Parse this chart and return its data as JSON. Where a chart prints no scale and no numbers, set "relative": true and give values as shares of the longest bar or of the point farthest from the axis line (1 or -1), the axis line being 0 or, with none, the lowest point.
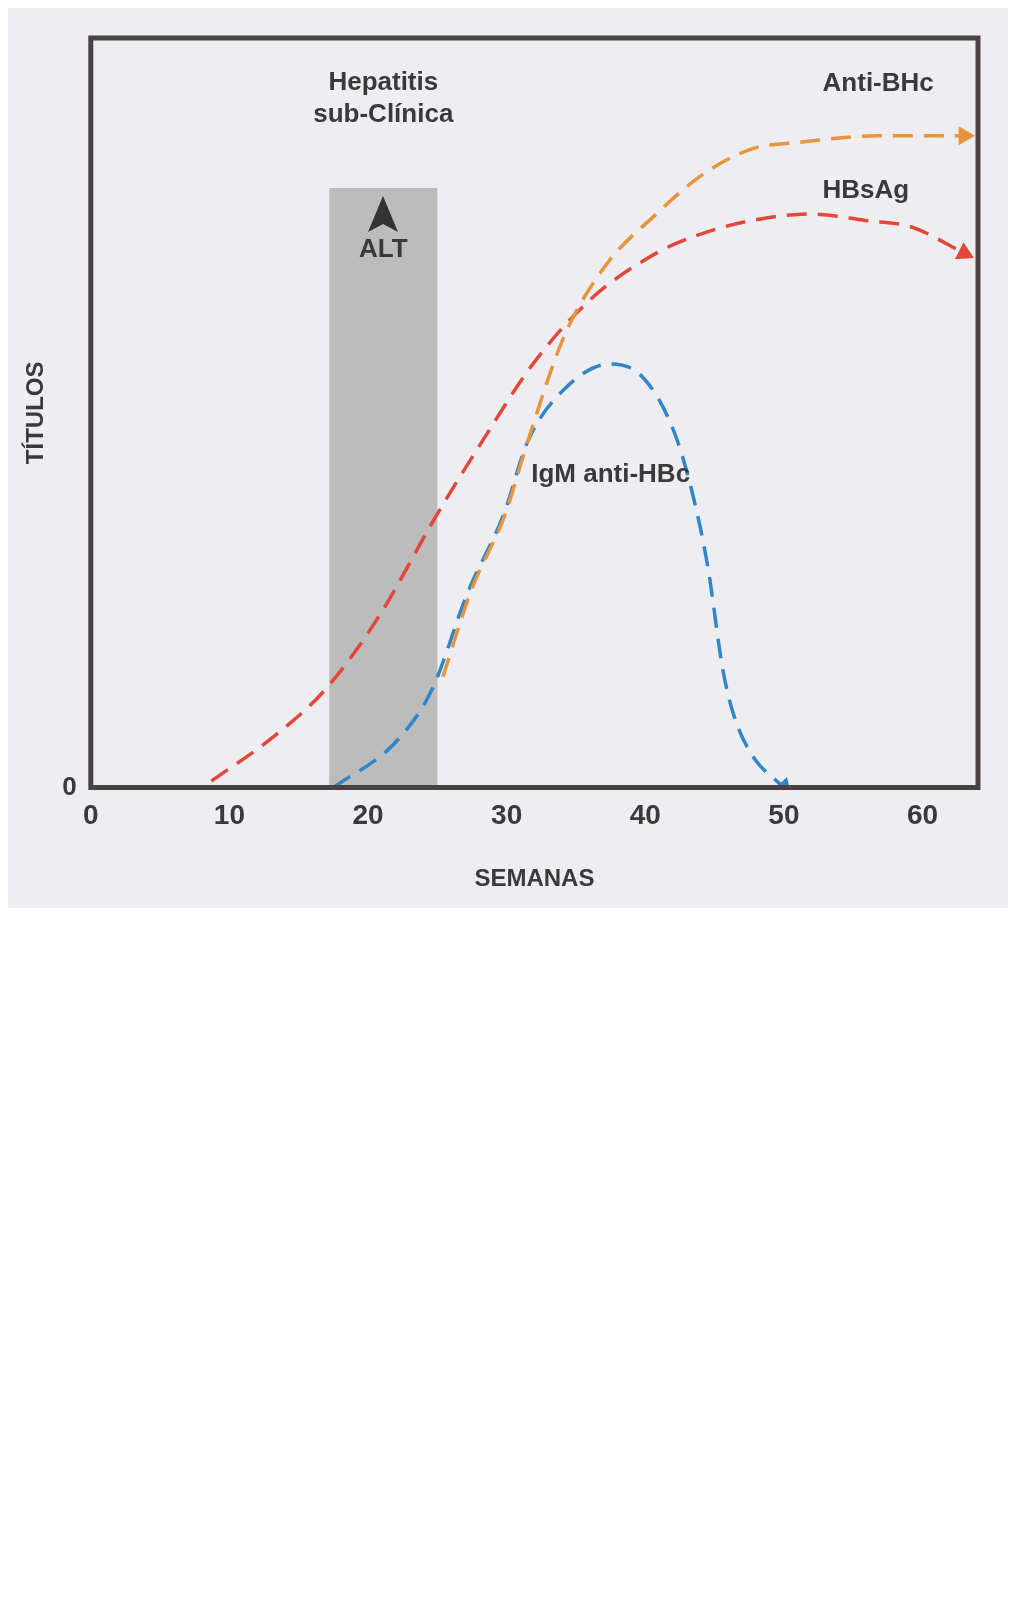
{
  "chart_data": {
    "type": "line",
    "relative": true,
    "xlabel": "SEMANAS",
    "ylabel": "TÍTULOS",
    "xlim": [
      0,
      64
    ],
    "xticks": [
      0,
      10,
      20,
      30,
      40,
      50,
      60
    ],
    "grid": false,
    "legend": false,
    "line_style": "dashed",
    "marker": "none",
    "series": [
      {
        "name": "Anti-BHc",
        "color": "#e8943c",
        "x": [
          25.4,
          27.4,
          29.9,
          31.5,
          34.1,
          37.1,
          40.8,
          44.1,
          47.7,
          51.1,
          56.8,
          63
        ],
        "values": [
          0.17,
          0.3,
          0.42,
          0.53,
          0.69,
          0.8,
          0.88,
          0.94,
          0.98,
          0.99,
          1.0,
          1.0
        ]
      },
      {
        "name": "HBsAg",
        "color": "#e2473a",
        "x": [
          8.7,
          13.3,
          16.9,
          20.7,
          25,
          28.2,
          31.9,
          36.1,
          40.8,
          44.1,
          47.7,
          51.9,
          55.9,
          59.2,
          63
        ],
        "values": [
          0.01,
          0.08,
          0.15,
          0.26,
          0.42,
          0.53,
          0.65,
          0.75,
          0.82,
          0.85,
          0.87,
          0.88,
          0.87,
          0.86,
          0.82
        ]
      },
      {
        "name": "IgM anti-HBc",
        "color": "#2f86c8",
        "x": [
          17.5,
          22,
          24.6,
          27.2,
          29.8,
          31.5,
          34.1,
          37.5,
          39.8,
          42,
          43.3,
          44.5,
          45.6,
          46.4,
          47.7,
          50
        ],
        "values": [
          0,
          0.07,
          0.15,
          0.3,
          0.42,
          0.53,
          0.61,
          0.65,
          0.63,
          0.55,
          0.46,
          0.34,
          0.18,
          0.11,
          0.05,
          0
        ]
      }
    ],
    "bands": [
      {
        "axis": "x",
        "from": 17.2,
        "to": 25,
        "label": "Hepatitis sub-Clínica",
        "color": "#bcbcbc"
      }
    ],
    "annotations": [
      "0",
      "ALT"
    ]
  }
}
